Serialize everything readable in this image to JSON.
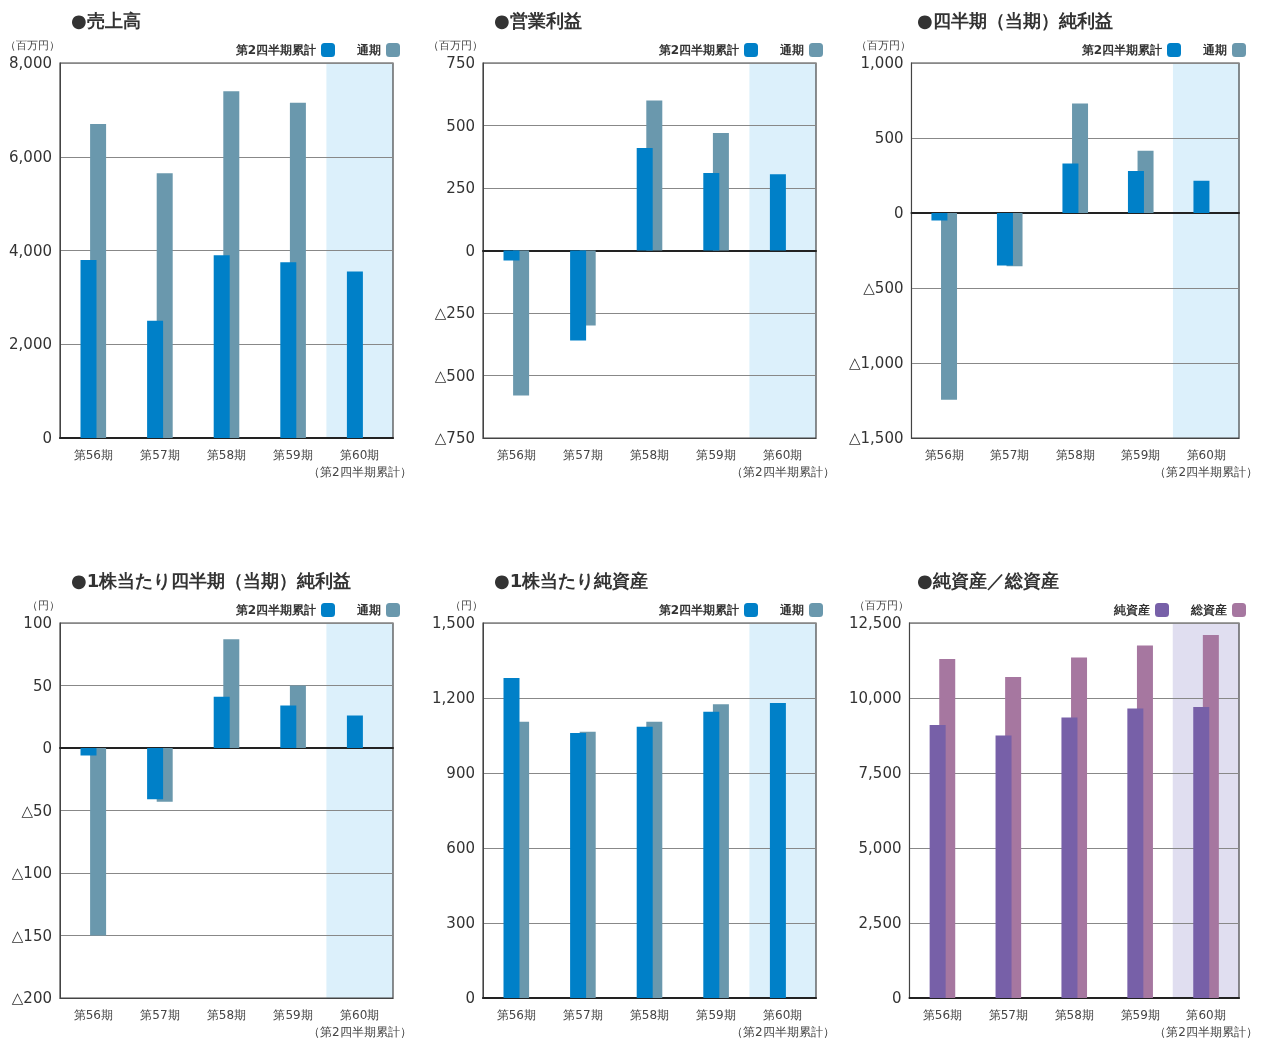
{
  "chart_data": [
    {
      "type": "bar",
      "title": "●売上高",
      "ylabel": "（百万円）",
      "categories": [
        "第56期",
        "第57期",
        "第58期",
        "第59期",
        "第60期（第2四半期累計）"
      ],
      "series": [
        {
          "name": "第2四半期累計",
          "color": "#0080c8",
          "values": [
            3800,
            2500,
            3900,
            3750,
            3550
          ]
        },
        {
          "name": "通期",
          "color": "#6a98ad",
          "values": [
            6700,
            5650,
            7400,
            7150,
            null
          ]
        }
      ],
      "ylim": [
        0,
        8000
      ],
      "yticks": [
        0,
        {
          "value": 2000,
          "label": "2,000"
        },
        {
          "value": 4000,
          "label": "4,000"
        },
        {
          "value": 6000,
          "label": "6,000"
        },
        {
          "value": 8000,
          "label": "8,000"
        }
      ],
      "grid": "y",
      "legend": "top right",
      "bands": [
        {
          "axis": "x",
          "from": "第60期（第2四半期累計）",
          "to": "第60期（第2四半期累計）",
          "color": "#dcf0fb"
        }
      ]
    },
    {
      "type": "bar",
      "title": "●営業利益",
      "ylabel": "（百万円）",
      "categories": [
        "第56期",
        "第57期",
        "第58期",
        "第59期",
        "第60期（第2四半期累計）"
      ],
      "series": [
        {
          "name": "第2四半期累計",
          "color": "#0080c8",
          "values": [
            -40,
            -360,
            410,
            310,
            305
          ]
        },
        {
          "name": "通期",
          "color": "#6a98ad",
          "values": [
            -580,
            -300,
            600,
            470,
            null
          ]
        }
      ],
      "ylim": [
        -750,
        750
      ],
      "yticks": [
        {
          "value": -750,
          "label": "△750"
        },
        {
          "value": -500,
          "label": "△500"
        },
        {
          "value": -250,
          "label": "△250"
        },
        0,
        250,
        500,
        750
      ],
      "grid": "y",
      "legend": "top right",
      "bands": [
        {
          "axis": "x",
          "from": "第60期（第2四半期累計）",
          "to": "第60期（第2四半期累計）",
          "color": "#dcf0fb"
        }
      ]
    },
    {
      "type": "bar",
      "title": "●四半期（当期）純利益",
      "ylabel": "（百万円）",
      "categories": [
        "第56期",
        "第57期",
        "第58期",
        "第59期",
        "第60期（第2四半期累計）"
      ],
      "series": [
        {
          "name": "第2四半期累計",
          "color": "#0080c8",
          "values": [
            -50,
            -350,
            330,
            280,
            215
          ]
        },
        {
          "name": "通期",
          "color": "#6a98ad",
          "values": [
            -1245,
            -355,
            730,
            415,
            null
          ]
        }
      ],
      "ylim": [
        -1500,
        1000
      ],
      "yticks": [
        {
          "value": -1500,
          "label": "△1,500"
        },
        {
          "value": -1000,
          "label": "△1,000"
        },
        {
          "value": -500,
          "label": "△500"
        },
        0,
        500,
        {
          "value": 1000,
          "label": "1,000"
        }
      ],
      "grid": "y",
      "legend": "top right",
      "bands": [
        {
          "axis": "x",
          "from": "第60期（第2四半期累計）",
          "to": "第60期（第2四半期累計）",
          "color": "#dcf0fb"
        }
      ]
    },
    {
      "type": "bar",
      "title": "●1株当たり四半期（当期）純利益",
      "ylabel": "（円）",
      "categories": [
        "第56期",
        "第57期",
        "第58期",
        "第59期",
        "第60期（第2四半期累計）"
      ],
      "series": [
        {
          "name": "第2四半期累計",
          "color": "#0080c8",
          "values": [
            -6,
            -41,
            41,
            34,
            26
          ]
        },
        {
          "name": "通期",
          "color": "#6a98ad",
          "values": [
            -150,
            -43,
            87,
            50,
            null
          ]
        }
      ],
      "ylim": [
        -200,
        100
      ],
      "yticks": [
        {
          "value": -200,
          "label": "△200"
        },
        {
          "value": -150,
          "label": "△150"
        },
        {
          "value": -100,
          "label": "△100"
        },
        {
          "value": -50,
          "label": "△50"
        },
        0,
        50,
        100
      ],
      "grid": "y",
      "legend": "top right",
      "bands": [
        {
          "axis": "x",
          "from": "第60期（第2四半期累計）",
          "to": "第60期（第2四半期累計）",
          "color": "#dcf0fb"
        }
      ]
    },
    {
      "type": "bar",
      "title": "●1株当たり純資産",
      "ylabel": "（円）",
      "categories": [
        "第56期",
        "第57期",
        "第58期",
        "第59期",
        "第60期（第2四半期累計）"
      ],
      "series": [
        {
          "name": "第2四半期累計",
          "color": "#0080c8",
          "values": [
            1280,
            1060,
            1085,
            1145,
            1180
          ]
        },
        {
          "name": "通期",
          "color": "#6a98ad",
          "values": [
            1105,
            1065,
            1105,
            1175,
            null
          ]
        }
      ],
      "ylim": [
        0,
        1500
      ],
      "yticks": [
        0,
        300,
        600,
        900,
        {
          "value": 1200,
          "label": "1,200"
        },
        {
          "value": 1500,
          "label": "1,500"
        }
      ],
      "grid": "y",
      "legend": "top right",
      "bands": [
        {
          "axis": "x",
          "from": "第60期（第2四半期累計）",
          "to": "第60期（第2四半期累計）",
          "color": "#dcf0fb"
        }
      ]
    },
    {
      "type": "bar",
      "title": "●純資産／総資産",
      "ylabel": "（百万円）",
      "categories": [
        "第56期",
        "第57期",
        "第58期",
        "第59期",
        "第60期（第2四半期累計）"
      ],
      "series": [
        {
          "name": "純資産",
          "color": "#7760a8",
          "values": [
            9100,
            8750,
            9350,
            9650,
            9700
          ]
        },
        {
          "name": "総資産",
          "color": "#a677a0",
          "values": [
            11300,
            10700,
            11350,
            11750,
            12100
          ]
        }
      ],
      "ylim": [
        0,
        12500
      ],
      "yticks": [
        0,
        {
          "value": 2500,
          "label": "2,500"
        },
        {
          "value": 5000,
          "label": "5,000"
        },
        {
          "value": 7500,
          "label": "7,500"
        },
        {
          "value": 10000,
          "label": "10,000"
        },
        {
          "value": 12500,
          "label": "12,500"
        }
      ],
      "grid": "y",
      "legend": "top right",
      "bands": [
        {
          "axis": "x",
          "from": "第60期（第2四半期累計）",
          "to": "第60期（第2四半期累計）",
          "color": "#e0def0"
        }
      ]
    }
  ]
}
